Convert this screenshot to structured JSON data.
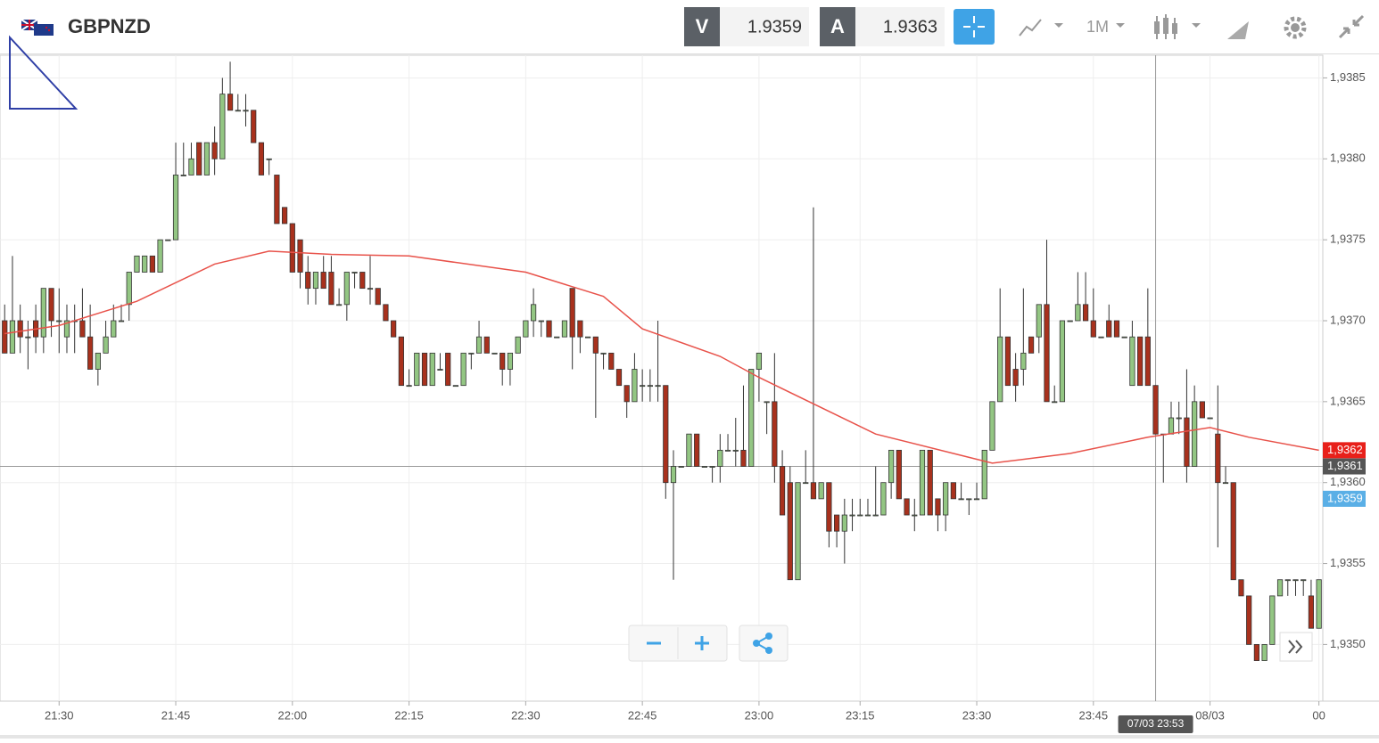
{
  "header": {
    "symbol": "GBPNZD",
    "sell_label": "V",
    "sell_price": "1.9359",
    "buy_label": "A",
    "buy_price": "1.9363",
    "timeframe": "1M"
  },
  "chart_data": {
    "type": "candlestick",
    "up_color": "#93c683",
    "down_color": "#a8311d",
    "ylim": [
      1.93465,
      1.93864
    ],
    "yticks": [
      {
        "value": 1.935,
        "label": "1,9350"
      },
      {
        "value": 1.9355,
        "label": "1,9355"
      },
      {
        "value": 1.936,
        "label": "1,9360"
      },
      {
        "value": 1.9365,
        "label": "1,9365"
      },
      {
        "value": 1.937,
        "label": "1,9370"
      },
      {
        "value": 1.9375,
        "label": "1,9375"
      },
      {
        "value": 1.938,
        "label": "1,9380"
      },
      {
        "value": 1.9385,
        "label": "1,9385"
      }
    ],
    "xlim": [
      -0.6,
      169.5
    ],
    "xticks": [
      {
        "value": 7,
        "label": "21:30"
      },
      {
        "value": 22,
        "label": "21:45"
      },
      {
        "value": 37,
        "label": "22:00"
      },
      {
        "value": 52,
        "label": "22:15"
      },
      {
        "value": 67,
        "label": "22:30"
      },
      {
        "value": 82,
        "label": "22:45"
      },
      {
        "value": 97,
        "label": "23:00"
      },
      {
        "value": 110,
        "label": "23:15"
      },
      {
        "value": 125,
        "label": "23:30"
      },
      {
        "value": 140,
        "label": "23:45"
      },
      {
        "value": 155,
        "label": "08/03"
      },
      {
        "value": 169,
        "label": "00"
      }
    ],
    "grid": true,
    "crosshair": {
      "value": 148,
      "label": "07/03 23:53"
    },
    "price_tags": [
      {
        "value": 1.9362,
        "label": "1,9362",
        "color": "#e8201a"
      },
      {
        "value": 1.9361,
        "label": "1,9361",
        "color": "#555555"
      },
      {
        "value": 1.9359,
        "label": "1,9359",
        "color": "#5aafe6"
      }
    ],
    "ma": {
      "color": "#e8524a",
      "x": [
        0,
        7,
        17,
        27,
        34,
        42,
        52,
        67,
        77,
        82,
        92,
        97,
        112,
        122,
        127,
        137,
        147,
        155,
        160,
        169
      ],
      "values": [
        1.93692,
        1.93697,
        1.93712,
        1.93735,
        1.93743,
        1.93741,
        1.9374,
        1.9373,
        1.93715,
        1.93695,
        1.93678,
        1.93665,
        1.9363,
        1.93618,
        1.93612,
        1.93618,
        1.93628,
        1.93634,
        1.93628,
        1.9362
      ]
    },
    "candles": [
      [
        1.937,
        1.9371,
        1.9368,
        1.9368
      ],
      [
        1.9368,
        1.9374,
        1.9368,
        1.937
      ],
      [
        1.937,
        1.9371,
        1.9368,
        1.9369
      ],
      [
        1.9369,
        1.937,
        1.9367,
        1.9369
      ],
      [
        1.937,
        1.9371,
        1.9368,
        1.9369
      ],
      [
        1.9369,
        1.9372,
        1.9368,
        1.9372
      ],
      [
        1.9372,
        1.9372,
        1.9369,
        1.937
      ],
      [
        1.937,
        1.9372,
        1.9368,
        1.937
      ],
      [
        1.9369,
        1.9371,
        1.9368,
        1.937
      ],
      [
        1.937,
        1.9371,
        1.9368,
        1.937
      ],
      [
        1.937,
        1.9372,
        1.9369,
        1.9369
      ],
      [
        1.9369,
        1.9371,
        1.9367,
        1.9367
      ],
      [
        1.9367,
        1.9368,
        1.9366,
        1.9368
      ],
      [
        1.9368,
        1.937,
        1.9368,
        1.9369
      ],
      [
        1.9369,
        1.9371,
        1.9369,
        1.937
      ],
      [
        1.937,
        1.9371,
        1.937,
        1.937
      ],
      [
        1.9371,
        1.9373,
        1.937,
        1.9373
      ],
      [
        1.9373,
        1.9374,
        1.9373,
        1.9374
      ],
      [
        1.9373,
        1.9374,
        1.9373,
        1.9374
      ],
      [
        1.9374,
        1.9374,
        1.9373,
        1.9373
      ],
      [
        1.9373,
        1.9375,
        1.9373,
        1.9375
      ],
      [
        1.9375,
        1.9375,
        1.9375,
        1.9375
      ],
      [
        1.9375,
        1.9381,
        1.9375,
        1.9379
      ],
      [
        1.9379,
        1.9381,
        1.9379,
        1.9379
      ],
      [
        1.9379,
        1.9381,
        1.9379,
        1.938
      ],
      [
        1.9381,
        1.9381,
        1.9379,
        1.9379
      ],
      [
        1.9379,
        1.9381,
        1.9379,
        1.9381
      ],
      [
        1.9381,
        1.9382,
        1.9379,
        1.938
      ],
      [
        1.938,
        1.9385,
        1.938,
        1.9384
      ],
      [
        1.9384,
        1.9386,
        1.9383,
        1.9383
      ],
      [
        1.9383,
        1.9384,
        1.9383,
        1.9383
      ],
      [
        1.9383,
        1.9384,
        1.9382,
        1.9383
      ],
      [
        1.9383,
        1.9383,
        1.9381,
        1.9381
      ],
      [
        1.9381,
        1.9381,
        1.9379,
        1.9379
      ],
      [
        1.938,
        1.938,
        1.9379,
        1.938
      ],
      [
        1.9379,
        1.9379,
        1.9376,
        1.9376
      ],
      [
        1.9377,
        1.9377,
        1.9376,
        1.9376
      ],
      [
        1.9376,
        1.9376,
        1.9373,
        1.9373
      ],
      [
        1.9375,
        1.9375,
        1.9372,
        1.9373
      ],
      [
        1.9373,
        1.9374,
        1.9371,
        1.9372
      ],
      [
        1.9372,
        1.9373,
        1.9371,
        1.9373
      ],
      [
        1.9373,
        1.9374,
        1.9372,
        1.9372
      ],
      [
        1.9373,
        1.9374,
        1.9371,
        1.9371
      ],
      [
        1.9371,
        1.9372,
        1.9371,
        1.9371
      ],
      [
        1.9371,
        1.9373,
        1.937,
        1.9373
      ],
      [
        1.9373,
        1.9373,
        1.9372,
        1.9373
      ],
      [
        1.9373,
        1.9373,
        1.9372,
        1.9372
      ],
      [
        1.9372,
        1.9374,
        1.9371,
        1.9372
      ],
      [
        1.9372,
        1.9372,
        1.9371,
        1.9371
      ],
      [
        1.9371,
        1.9371,
        1.937,
        1.937
      ],
      [
        1.937,
        1.937,
        1.9369,
        1.9369
      ],
      [
        1.9369,
        1.9369,
        1.9366,
        1.9366
      ],
      [
        1.9366,
        1.9367,
        1.9366,
        1.9366
      ],
      [
        1.9366,
        1.9368,
        1.9366,
        1.9368
      ],
      [
        1.9368,
        1.9368,
        1.9366,
        1.9366
      ],
      [
        1.9366,
        1.9368,
        1.9366,
        1.9368
      ],
      [
        1.9367,
        1.9368,
        1.9367,
        1.9367
      ],
      [
        1.9368,
        1.9368,
        1.9366,
        1.9366
      ],
      [
        1.9366,
        1.9366,
        1.9366,
        1.9366
      ],
      [
        1.9366,
        1.9368,
        1.9366,
        1.9368
      ],
      [
        1.9368,
        1.9368,
        1.9367,
        1.9368
      ],
      [
        1.9368,
        1.937,
        1.9368,
        1.9369
      ],
      [
        1.9369,
        1.9369,
        1.9368,
        1.9368
      ],
      [
        1.9368,
        1.9368,
        1.9368,
        1.9368
      ],
      [
        1.9368,
        1.9368,
        1.9366,
        1.9367
      ],
      [
        1.9367,
        1.9368,
        1.9366,
        1.9368
      ],
      [
        1.9368,
        1.9369,
        1.9368,
        1.9369
      ],
      [
        1.9369,
        1.937,
        1.9369,
        1.937
      ],
      [
        1.937,
        1.9372,
        1.9369,
        1.9371
      ],
      [
        1.937,
        1.937,
        1.9369,
        1.937
      ],
      [
        1.937,
        1.937,
        1.9369,
        1.9369
      ],
      [
        1.9369,
        1.9369,
        1.9369,
        1.9369
      ],
      [
        1.9369,
        1.937,
        1.9369,
        1.937
      ],
      [
        1.9372,
        1.9372,
        1.9367,
        1.9369
      ],
      [
        1.937,
        1.937,
        1.9368,
        1.9369
      ],
      [
        1.9369,
        1.9369,
        1.9369,
        1.9369
      ],
      [
        1.9369,
        1.9369,
        1.9364,
        1.9368
      ],
      [
        1.9368,
        1.9368,
        1.9367,
        1.9368
      ],
      [
        1.9368,
        1.9368,
        1.9367,
        1.9367
      ],
      [
        1.9367,
        1.9367,
        1.9366,
        1.9366
      ],
      [
        1.9366,
        1.9366,
        1.9364,
        1.9365
      ],
      [
        1.9365,
        1.9368,
        1.9365,
        1.9367
      ],
      [
        1.9366,
        1.9367,
        1.9365,
        1.9366
      ],
      [
        1.9366,
        1.9367,
        1.9365,
        1.9366
      ],
      [
        1.9366,
        1.937,
        1.9365,
        1.9366
      ],
      [
        1.9366,
        1.9366,
        1.9359,
        1.936
      ],
      [
        1.936,
        1.9362,
        1.9354,
        1.9361
      ],
      [
        1.9361,
        1.9361,
        1.9361,
        1.9361
      ],
      [
        1.9361,
        1.9363,
        1.9361,
        1.9363
      ],
      [
        1.9363,
        1.9363,
        1.9361,
        1.9361
      ],
      [
        1.9361,
        1.9361,
        1.9361,
        1.9361
      ],
      [
        1.9361,
        1.9361,
        1.936,
        1.9361
      ],
      [
        1.9361,
        1.9363,
        1.936,
        1.9362
      ],
      [
        1.9362,
        1.9363,
        1.9362,
        1.9362
      ],
      [
        1.9362,
        1.9364,
        1.9361,
        1.9362
      ],
      [
        1.9362,
        1.9366,
        1.9361,
        1.9361
      ],
      [
        1.9361,
        1.9367,
        1.9361,
        1.9367
      ],
      [
        1.9367,
        1.9368,
        1.9365,
        1.9368
      ],
      [
        1.9365,
        1.9365,
        1.9363,
        1.9365
      ],
      [
        1.9365,
        1.9368,
        1.936,
        1.9361
      ],
      [
        1.9361,
        1.9362,
        1.9358,
        1.9358
      ],
      [
        1.936,
        1.9361,
        1.9354,
        1.9354
      ],
      [
        1.9354,
        1.936,
        1.9354,
        1.936
      ],
      [
        1.936,
        1.9362,
        1.936,
        1.936
      ],
      [
        1.936,
        1.9377,
        1.9359,
        1.9359
      ],
      [
        1.9359,
        1.936,
        1.9359,
        1.936
      ],
      [
        1.936,
        1.936,
        1.9356,
        1.9357
      ],
      [
        1.9358,
        1.9358,
        1.9356,
        1.9357
      ],
      [
        1.9357,
        1.9359,
        1.9355,
        1.9358
      ],
      [
        1.9358,
        1.9359,
        1.9357,
        1.9358
      ],
      [
        1.9358,
        1.9359,
        1.9358,
        1.9358
      ],
      [
        1.9358,
        1.9359,
        1.9358,
        1.9358
      ],
      [
        1.9358,
        1.9361,
        1.9358,
        1.9358
      ],
      [
        1.9358,
        1.936,
        1.9358,
        1.936
      ],
      [
        1.936,
        1.9362,
        1.9359,
        1.9362
      ],
      [
        1.9362,
        1.9362,
        1.9359,
        1.9359
      ],
      [
        1.9359,
        1.9359,
        1.9358,
        1.9358
      ],
      [
        1.9358,
        1.9359,
        1.9357,
        1.9358
      ],
      [
        1.9358,
        1.9362,
        1.9358,
        1.9362
      ],
      [
        1.9362,
        1.9362,
        1.9358,
        1.9358
      ],
      [
        1.9359,
        1.9359,
        1.9357,
        1.9358
      ],
      [
        1.9358,
        1.936,
        1.9357,
        1.936
      ],
      [
        1.936,
        1.936,
        1.9359,
        1.9359
      ],
      [
        1.9359,
        1.936,
        1.9359,
        1.9359
      ],
      [
        1.9359,
        1.9359,
        1.9358,
        1.9359
      ],
      [
        1.9359,
        1.936,
        1.9359,
        1.9359
      ],
      [
        1.9359,
        1.9362,
        1.9359,
        1.9362
      ],
      [
        1.9362,
        1.9365,
        1.9362,
        1.9365
      ],
      [
        1.9365,
        1.9372,
        1.9365,
        1.9369
      ],
      [
        1.9369,
        1.9369,
        1.9366,
        1.9366
      ],
      [
        1.9367,
        1.9368,
        1.9365,
        1.9366
      ],
      [
        1.9367,
        1.9372,
        1.9366,
        1.9368
      ],
      [
        1.9369,
        1.9369,
        1.9368,
        1.9368
      ],
      [
        1.9369,
        1.9371,
        1.9368,
        1.9371
      ],
      [
        1.9371,
        1.9375,
        1.9365,
        1.9365
      ],
      [
        1.9365,
        1.9366,
        1.9365,
        1.9365
      ],
      [
        1.9365,
        1.937,
        1.9365,
        1.937
      ],
      [
        1.937,
        1.937,
        1.937,
        1.937
      ],
      [
        1.937,
        1.9373,
        1.937,
        1.9371
      ],
      [
        1.9371,
        1.9373,
        1.937,
        1.937
      ],
      [
        1.937,
        1.9372,
        1.9369,
        1.9369
      ],
      [
        1.9369,
        1.9369,
        1.9369,
        1.9369
      ],
      [
        1.937,
        1.9371,
        1.9369,
        1.9369
      ],
      [
        1.937,
        1.937,
        1.9369,
        1.9369
      ],
      [
        1.9369,
        1.9369,
        1.9369,
        1.9369
      ],
      [
        1.9366,
        1.937,
        1.9366,
        1.9369
      ],
      [
        1.9369,
        1.9369,
        1.9366,
        1.9366
      ],
      [
        1.9369,
        1.9372,
        1.9366,
        1.9366
      ],
      [
        1.9366,
        1.9366,
        1.9363,
        1.9363
      ],
      [
        1.9363,
        1.9363,
        1.936,
        1.9363
      ],
      [
        1.9363,
        1.9365,
        1.9363,
        1.9364
      ],
      [
        1.9364,
        1.9365,
        1.9363,
        1.9364
      ],
      [
        1.9364,
        1.9367,
        1.936,
        1.9361
      ],
      [
        1.9361,
        1.9366,
        1.9361,
        1.9365
      ],
      [
        1.9365,
        1.9365,
        1.9364,
        1.9364
      ],
      [
        1.9364,
        1.9364,
        1.9364,
        1.9364
      ],
      [
        1.9363,
        1.9366,
        1.9356,
        1.936
      ],
      [
        1.936,
        1.9361,
        1.936,
        1.936
      ],
      [
        1.936,
        1.936,
        1.9354,
        1.9354
      ],
      [
        1.9354,
        1.9354,
        1.9353,
        1.9353
      ],
      [
        1.9353,
        1.9353,
        1.935,
        1.935
      ],
      [
        1.935,
        1.935,
        1.9349,
        1.9349
      ],
      [
        1.9349,
        1.935,
        1.9349,
        1.935
      ],
      [
        1.935,
        1.9353,
        1.935,
        1.9353
      ],
      [
        1.9353,
        1.9354,
        1.9353,
        1.9354
      ],
      [
        1.9354,
        1.9354,
        1.9353,
        1.9354
      ],
      [
        1.9354,
        1.9354,
        1.9353,
        1.9354
      ],
      [
        1.9354,
        1.9354,
        1.9353,
        1.9354
      ],
      [
        1.9353,
        1.9354,
        1.9351,
        1.9351
      ],
      [
        1.9351,
        1.9354,
        1.9351,
        1.9354
      ]
    ]
  }
}
